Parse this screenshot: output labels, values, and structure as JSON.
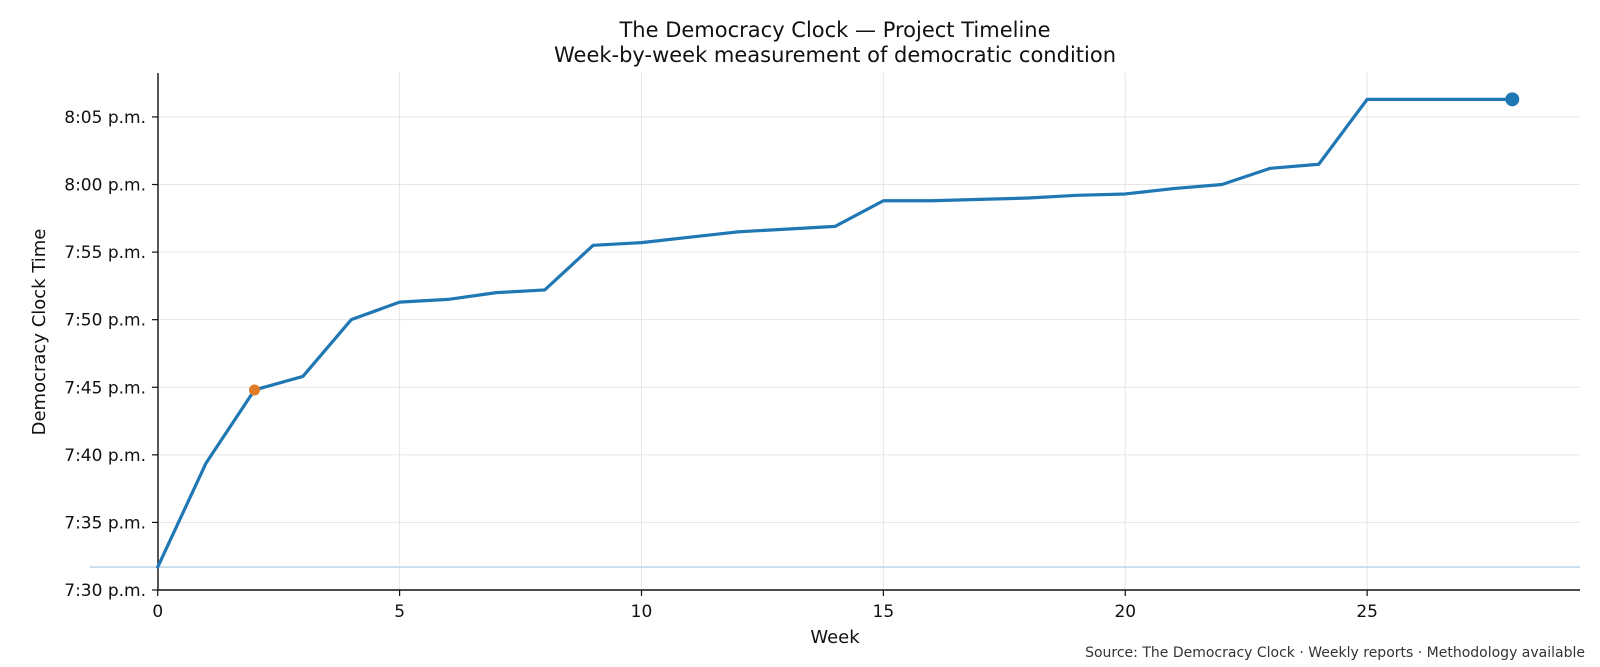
{
  "chart_data": {
    "type": "line",
    "title": "The Democracy Clock — Project Timeline",
    "subtitle": "Week-by-week measurement of democratic condition",
    "xlabel": "Week",
    "ylabel": "Democracy Clock Time",
    "source": "Source: The Democracy Clock · Weekly reports · Methodology available",
    "xlim": [
      -1.4,
      29.4
    ],
    "ylim_minutes": [
      450.0,
      488.25
    ],
    "x_ticks": [
      {
        "value": 0,
        "label": "0"
      },
      {
        "value": 5,
        "label": "5"
      },
      {
        "value": 10,
        "label": "10"
      },
      {
        "value": 15,
        "label": "15"
      },
      {
        "value": 20,
        "label": "20"
      },
      {
        "value": 25,
        "label": "25"
      }
    ],
    "y_ticks": [
      {
        "value": 450,
        "label": "7:30 p.m."
      },
      {
        "value": 455,
        "label": "7:35 p.m."
      },
      {
        "value": 460,
        "label": "7:40 p.m."
      },
      {
        "value": 465,
        "label": "7:45 p.m."
      },
      {
        "value": 470,
        "label": "7:50 p.m."
      },
      {
        "value": 475,
        "label": "7:55 p.m."
      },
      {
        "value": 480,
        "label": "8:00 p.m."
      },
      {
        "value": 485,
        "label": "8:05 p.m."
      }
    ],
    "grid": true,
    "reference_line": {
      "y": 451.7,
      "color": "#b7d3e6"
    },
    "series": [
      {
        "color": "#1f77b4",
        "x": [
          0,
          1,
          2,
          3,
          4,
          5,
          6,
          7,
          8,
          9,
          10,
          11,
          12,
          13,
          14,
          15,
          16,
          17,
          18,
          19,
          20,
          21,
          22,
          23,
          24,
          25,
          26,
          27,
          28
        ],
        "y": [
          451.7,
          459.4,
          464.8,
          465.8,
          470.0,
          471.3,
          471.5,
          472.0,
          472.2,
          475.5,
          475.7,
          476.1,
          476.5,
          476.7,
          476.9,
          478.8,
          478.8,
          478.9,
          479.0,
          479.2,
          479.3,
          479.7,
          480.0,
          481.2,
          481.5,
          486.3,
          486.3,
          486.3,
          486.3
        ]
      }
    ],
    "highlights": [
      {
        "x": 2,
        "y": 464.8,
        "color": "#e07b28",
        "role": "marker"
      },
      {
        "x": 28,
        "y": 486.3,
        "color": "#1f77b4",
        "role": "endpoint"
      }
    ]
  }
}
